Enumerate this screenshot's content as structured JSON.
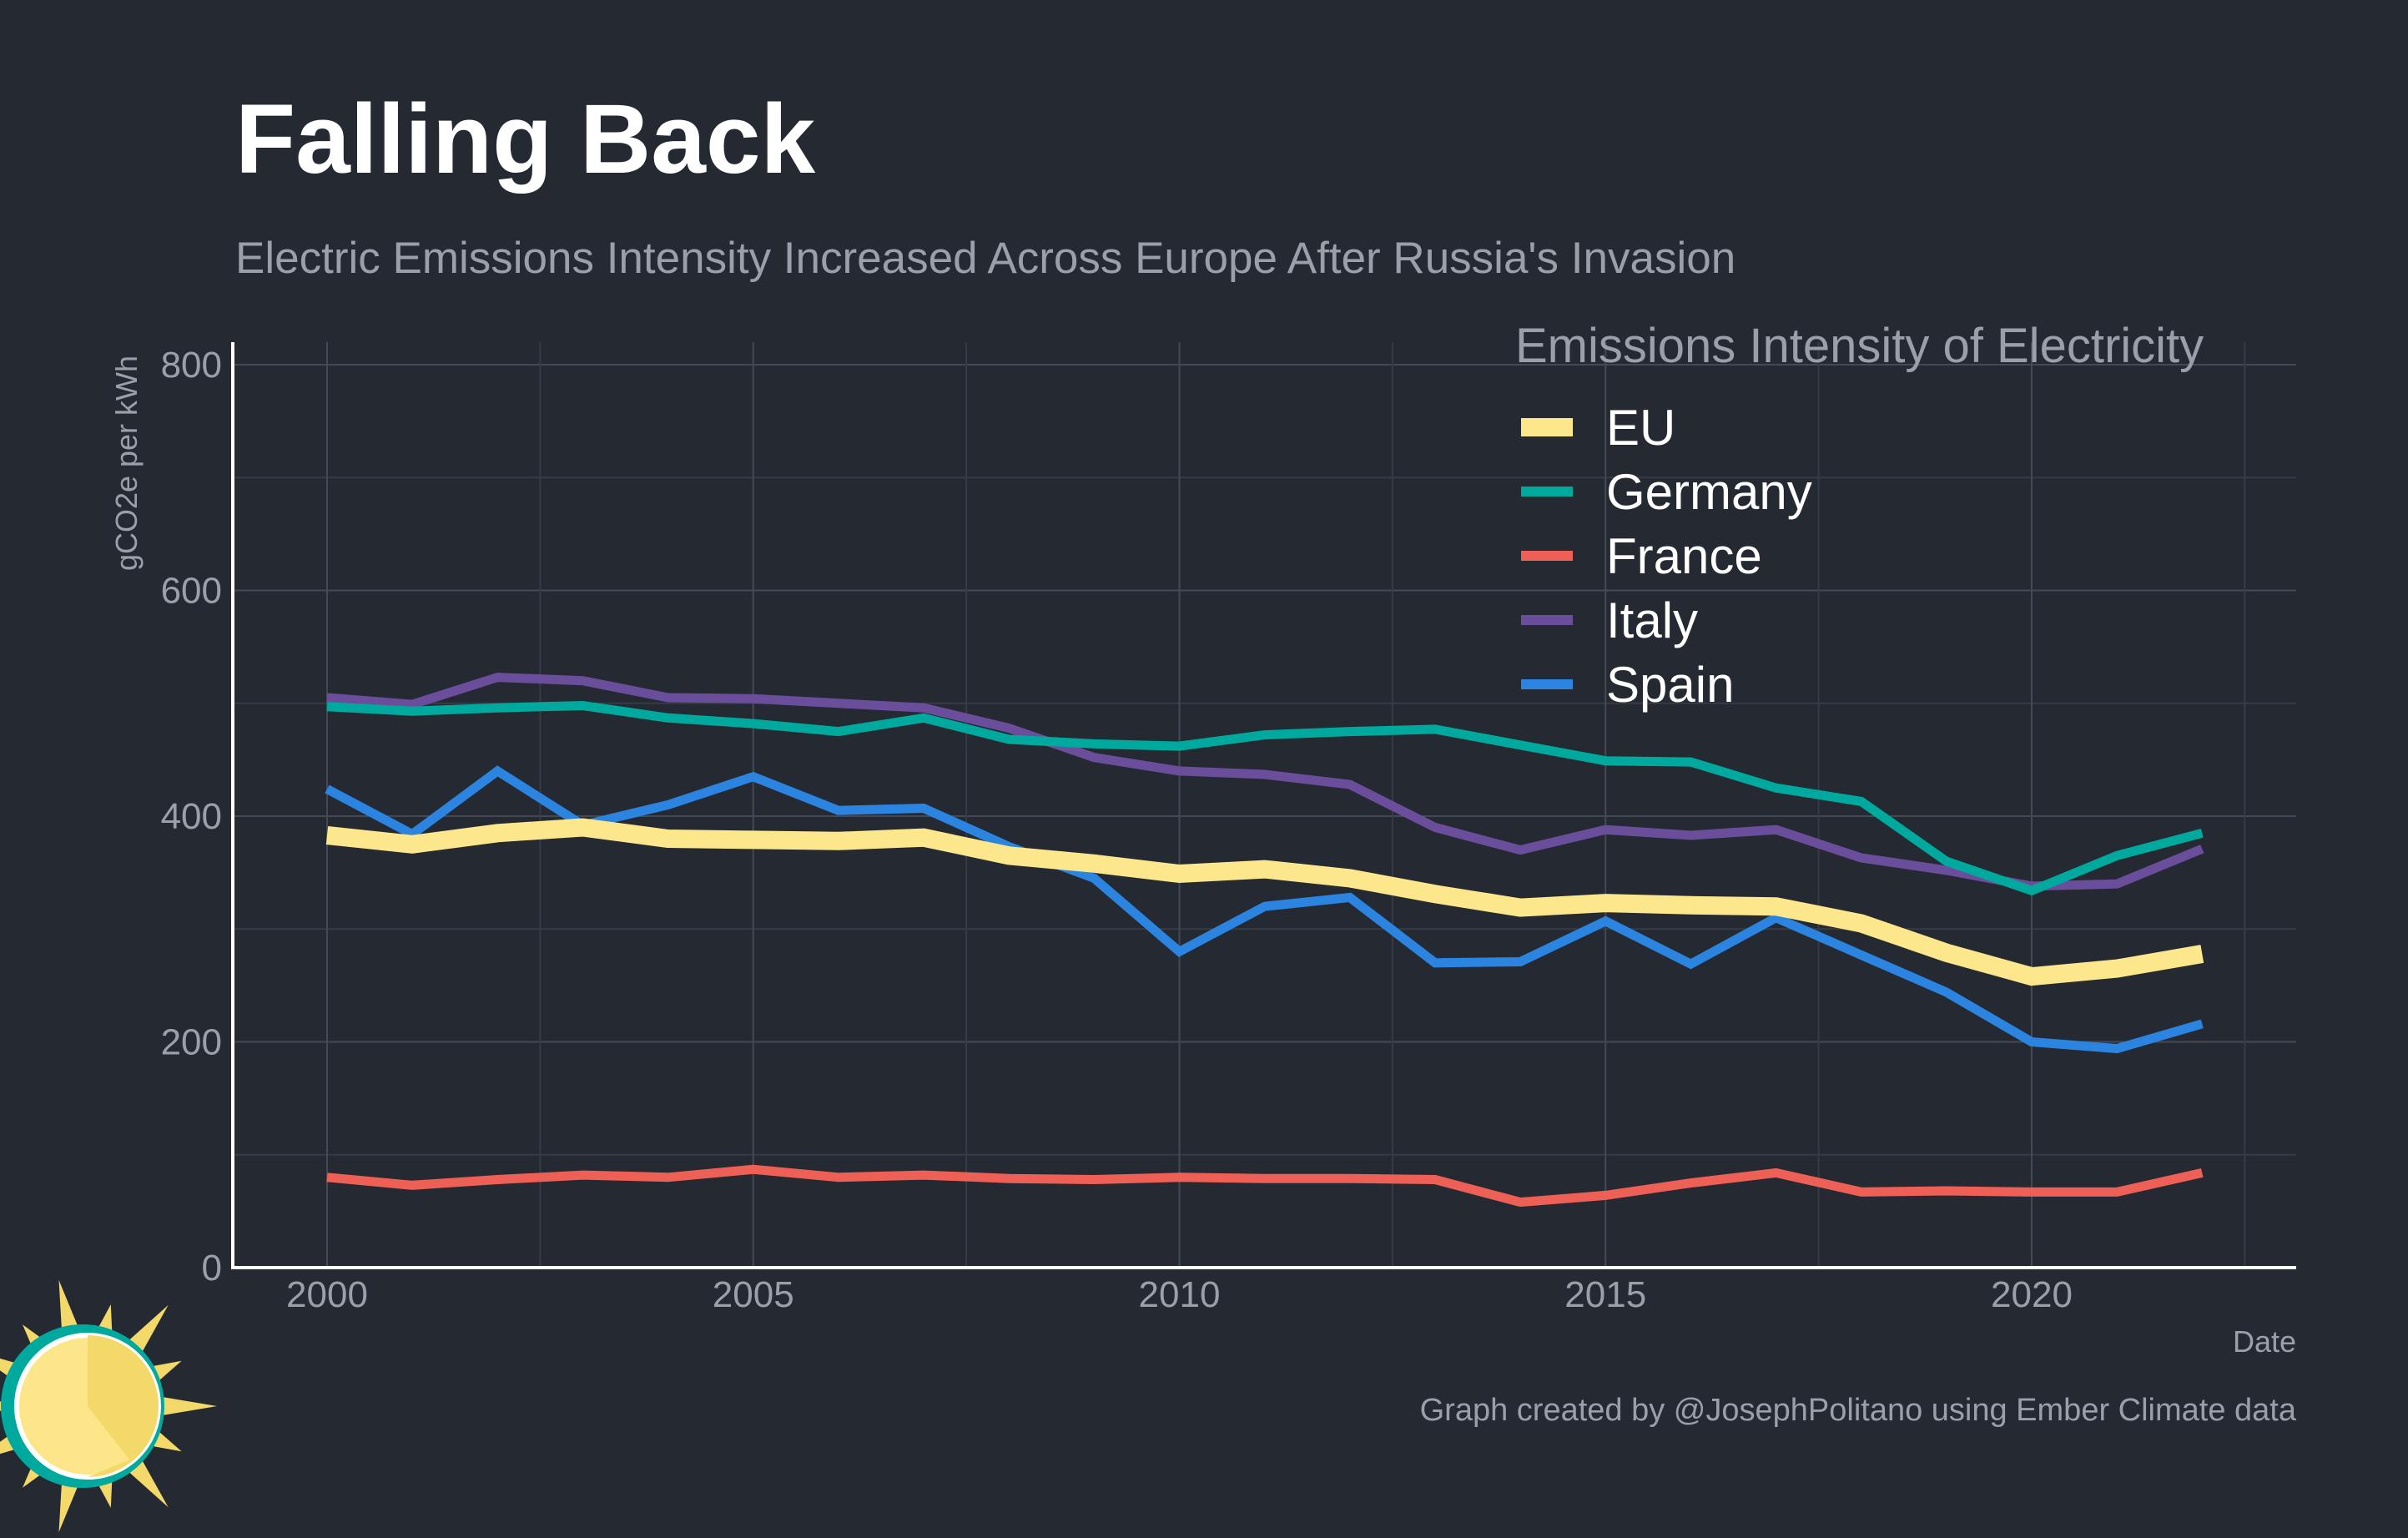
{
  "title": "Falling Back",
  "subtitle": "Electric Emissions Intensity Increased Across Europe After Russia's Invasion",
  "caption": "Graph created by @JosephPolitano using Ember Climate data",
  "logo": {
    "icon": "sun-icon",
    "colors": [
      "#00a99d",
      "#fbe182",
      "#f3d86a"
    ]
  },
  "chart_data": {
    "type": "line",
    "title": "Falling Back",
    "subtitle": "Electric Emissions Intensity Increased Across Europe After Russia's Invasion",
    "xlabel": "Date",
    "ylabel": "gCO2e per kWh",
    "xlim": [
      1999,
      2022.5
    ],
    "ylim": [
      0,
      800
    ],
    "x_ticks": [
      2000,
      2005,
      2010,
      2015,
      2020
    ],
    "x_tick_labels": [
      "2000",
      "2005",
      "2010",
      "2015",
      "2020"
    ],
    "y_ticks": [
      0,
      200,
      400,
      600,
      800
    ],
    "y_tick_labels": [
      "0",
      "200",
      "400",
      "600",
      "800"
    ],
    "grid": true,
    "legend_title": "Emissions Intensity of Electricity",
    "legend_position": "top-right",
    "x": [
      2000,
      2001,
      2002,
      2003,
      2004,
      2005,
      2006,
      2007,
      2008,
      2009,
      2010,
      2011,
      2012,
      2013,
      2014,
      2015,
      2016,
      2017,
      2018,
      2019,
      2020,
      2021,
      2022
    ],
    "series": [
      {
        "name": "EU",
        "color": "#fde78c",
        "width": 22,
        "values": [
          383,
          375,
          385,
          390,
          380,
          379,
          378,
          381,
          365,
          358,
          349,
          353,
          345,
          331,
          319,
          323,
          321,
          320,
          305,
          279,
          258,
          265,
          278
        ]
      },
      {
        "name": "Germany",
        "color": "#00a99d",
        "width": 11,
        "values": [
          497,
          493,
          496,
          498,
          487,
          482,
          475,
          487,
          468,
          464,
          462,
          472,
          475,
          477,
          463,
          449,
          448,
          425,
          413,
          360,
          334,
          365,
          385
        ]
      },
      {
        "name": "France",
        "color": "#ee6055",
        "width": 11,
        "values": [
          80,
          73,
          78,
          82,
          80,
          87,
          80,
          82,
          79,
          78,
          80,
          79,
          79,
          78,
          58,
          64,
          75,
          84,
          67,
          68,
          67,
          67,
          84
        ]
      },
      {
        "name": "Italy",
        "color": "#6b4e9b",
        "width": 11,
        "values": [
          505,
          499,
          523,
          520,
          505,
          504,
          500,
          496,
          478,
          452,
          440,
          437,
          428,
          390,
          370,
          388,
          383,
          388,
          363,
          352,
          338,
          340,
          371
        ]
      },
      {
        "name": "Spain",
        "color": "#2b84e0",
        "width": 11,
        "values": [
          424,
          384,
          440,
          392,
          410,
          435,
          405,
          407,
          373,
          345,
          280,
          320,
          328,
          270,
          271,
          307,
          269,
          310,
          277,
          244,
          200,
          194,
          216
        ]
      }
    ]
  }
}
